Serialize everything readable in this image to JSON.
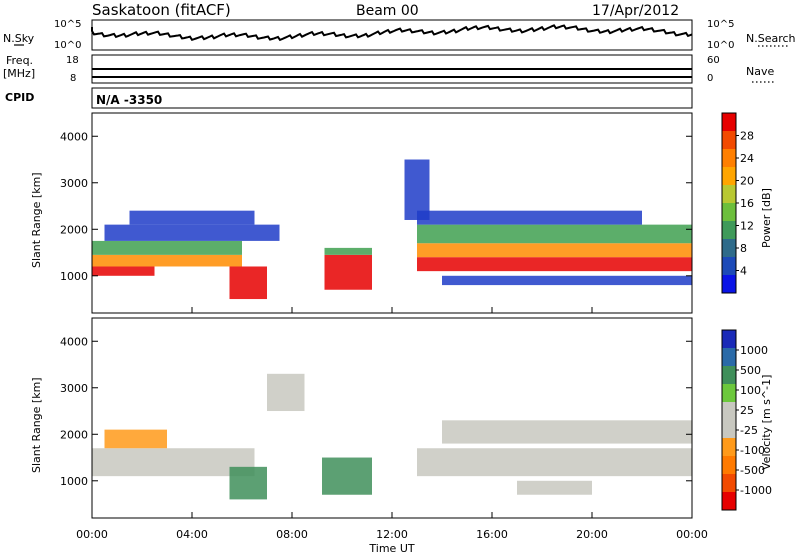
{
  "header": {
    "title": "Saskatoon (fitACF)",
    "beam": "Beam 00",
    "date": "17/Apr/2012"
  },
  "chart_data": [
    {
      "type": "line",
      "panel": "noise",
      "left_label": "N.Sky",
      "right_label": "N.Search",
      "left_ticks": [
        "10^5",
        "10^0"
      ],
      "right_ticks": [
        "10^5",
        "10^0"
      ],
      "right_legend_style": "dotted"
    },
    {
      "type": "line",
      "panel": "frequency",
      "left_label_line1": "Freq.",
      "left_label_line2": "[MHz]",
      "left_ticks": [
        "18",
        "8"
      ],
      "right_label": "Nave",
      "right_ticks": [
        "60",
        "0"
      ],
      "right_legend_style": "dotted"
    },
    {
      "type": "table",
      "panel": "cpid",
      "label": "CPID",
      "value": "N/A -3350"
    },
    {
      "type": "heatmap",
      "panel": "power",
      "ylabel": "Slant Range [km]",
      "ylim": [
        200,
        4500
      ],
      "yticks": [
        1000,
        2000,
        3000,
        4000
      ],
      "colorbar": {
        "label": "Power [dB]",
        "ticks": [
          4,
          8,
          12,
          16,
          20,
          24,
          28
        ],
        "colors": [
          "#0a14e6",
          "#1c4ab8",
          "#2e6b8a",
          "#3f9a5a",
          "#6cbf3c",
          "#b8c832",
          "#ffa500",
          "#ff7f00",
          "#f24a00",
          "#e60000"
        ]
      },
      "regions": [
        {
          "t": [
            0,
            2.5
          ],
          "r": [
            1000,
            1200
          ],
          "level": "red"
        },
        {
          "t": [
            0,
            6
          ],
          "r": [
            1200,
            1450
          ],
          "level": "orange"
        },
        {
          "t": [
            0,
            6
          ],
          "r": [
            1450,
            1750
          ],
          "level": "green"
        },
        {
          "t": [
            0.5,
            7.5
          ],
          "r": [
            1750,
            2100
          ],
          "level": "blue"
        },
        {
          "t": [
            1.5,
            6.5
          ],
          "r": [
            2100,
            2400
          ],
          "level": "blue"
        },
        {
          "t": [
            5.5,
            7
          ],
          "r": [
            500,
            1200
          ],
          "level": "red"
        },
        {
          "t": [
            9.3,
            11.2
          ],
          "r": [
            700,
            1450
          ],
          "level": "red"
        },
        {
          "t": [
            9.3,
            11.2
          ],
          "r": [
            1450,
            1600
          ],
          "level": "green"
        },
        {
          "t": [
            13,
            24
          ],
          "r": [
            1100,
            1400
          ],
          "level": "red"
        },
        {
          "t": [
            13,
            24
          ],
          "r": [
            1400,
            1700
          ],
          "level": "orange"
        },
        {
          "t": [
            13,
            24
          ],
          "r": [
            1700,
            2100
          ],
          "level": "green"
        },
        {
          "t": [
            13,
            22
          ],
          "r": [
            2100,
            2400
          ],
          "level": "blue"
        },
        {
          "t": [
            14,
            24
          ],
          "r": [
            800,
            1000
          ],
          "level": "blue"
        },
        {
          "t": [
            12.5,
            13.5
          ],
          "r": [
            2200,
            3500
          ],
          "level": "blue"
        }
      ]
    },
    {
      "type": "heatmap",
      "panel": "velocity",
      "ylabel": "Slant Range [km]",
      "ylim": [
        200,
        4500
      ],
      "yticks": [
        1000,
        2000,
        3000,
        4000
      ],
      "colorbar": {
        "label": "Velocity [m s^-1]",
        "ticks": [
          1000,
          500,
          100,
          25,
          -25,
          -100,
          -500,
          -1000
        ],
        "colors": [
          "#1a2ab8",
          "#2a6aa8",
          "#3f8f5a",
          "#6cc83c",
          "#c8c8c0",
          "#c8c8c0",
          "#ff9a1a",
          "#ff7a00",
          "#f24a00",
          "#e60000"
        ]
      },
      "xlabel": "Time UT",
      "xticks": [
        "00:00",
        "04:00",
        "08:00",
        "12:00",
        "16:00",
        "20:00",
        "00:00"
      ],
      "xlim": [
        0,
        24
      ],
      "regions": [
        {
          "t": [
            0,
            6.5
          ],
          "r": [
            1100,
            1700
          ],
          "level": "grey"
        },
        {
          "t": [
            0.5,
            3
          ],
          "r": [
            1700,
            2100
          ],
          "level": "orange"
        },
        {
          "t": [
            5.5,
            7
          ],
          "r": [
            600,
            1300
          ],
          "level": "mixed"
        },
        {
          "t": [
            9.2,
            11.2
          ],
          "r": [
            700,
            1500
          ],
          "level": "mixed"
        },
        {
          "t": [
            13,
            24
          ],
          "r": [
            1100,
            1700
          ],
          "level": "grey"
        },
        {
          "t": [
            14,
            24
          ],
          "r": [
            1800,
            2300
          ],
          "level": "grey"
        },
        {
          "t": [
            7,
            8.5
          ],
          "r": [
            2500,
            3300
          ],
          "level": "grey"
        },
        {
          "t": [
            17,
            20
          ],
          "r": [
            700,
            1000
          ],
          "level": "grey"
        }
      ]
    }
  ]
}
